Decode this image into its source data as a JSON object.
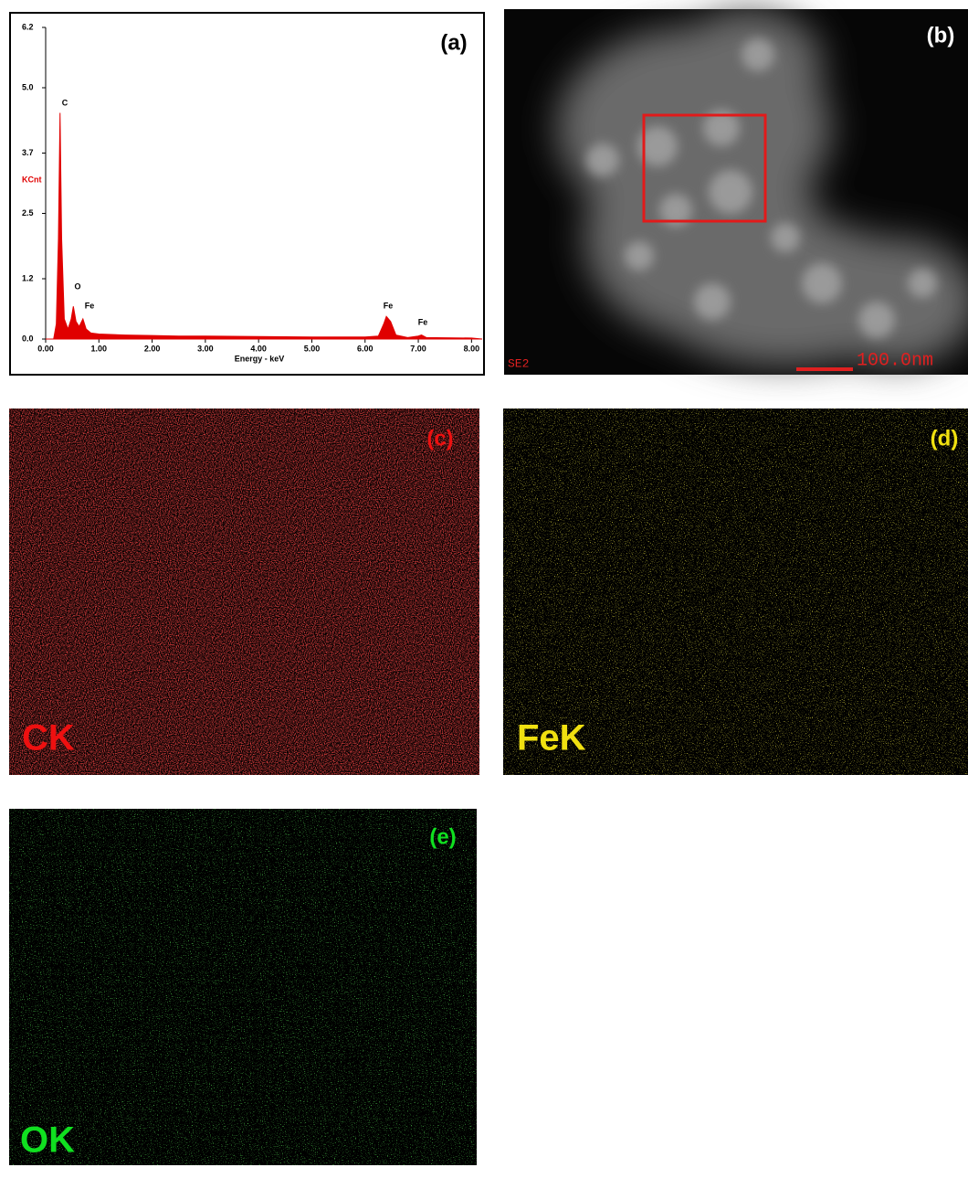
{
  "chart_data": {
    "type": "area",
    "label": "(a)",
    "x_label": "Energy - keV",
    "y_label": "KCnt",
    "x": [
      0.0,
      0.15,
      0.2,
      0.24,
      0.27,
      0.3,
      0.35,
      0.42,
      0.48,
      0.52,
      0.57,
      0.63,
      0.7,
      0.76,
      0.85,
      1.0,
      1.5,
      2.0,
      2.5,
      3.0,
      4.0,
      5.0,
      6.0,
      6.25,
      6.35,
      6.4,
      6.48,
      6.58,
      6.8,
      7.0,
      7.06,
      7.15,
      8.0,
      8.2
    ],
    "series": [
      {
        "color": "#e00000",
        "values": [
          0,
          0,
          0.3,
          2.0,
          4.5,
          2.0,
          0.4,
          0.2,
          0.4,
          0.65,
          0.35,
          0.25,
          0.4,
          0.2,
          0.12,
          0.1,
          0.08,
          0.07,
          0.06,
          0.06,
          0.05,
          0.04,
          0.04,
          0.06,
          0.3,
          0.45,
          0.35,
          0.08,
          0.03,
          0.06,
          0.08,
          0.03,
          0.02,
          0
        ]
      }
    ],
    "annotations": [
      "C",
      "O",
      "Fe",
      "Fe",
      "Fe"
    ],
    "xlim": [
      0,
      8.2
    ],
    "xticks": [
      {
        "value": 0,
        "label": "0.00"
      },
      {
        "value": 1,
        "label": "1.00"
      },
      {
        "value": 2,
        "label": "2.00"
      },
      {
        "value": 3,
        "label": "3.00"
      },
      {
        "value": 4,
        "label": "4.00"
      },
      {
        "value": 5,
        "label": "5.00"
      },
      {
        "value": 6,
        "label": "6.00"
      },
      {
        "value": 7,
        "label": "7.00"
      },
      {
        "value": 8,
        "label": "8.00"
      }
    ],
    "ylim": [
      0,
      6.2
    ],
    "yticks": [
      {
        "value": 0,
        "label": "0.0"
      },
      1.2,
      2.5,
      3.7,
      {
        "value": 5,
        "label": "5.0"
      },
      6.2
    ]
  },
  "panels": [
    {
      "label": "(b)",
      "detector": "SE2",
      "scale": "100.0nm"
    },
    {
      "label": "(c)",
      "element": "CK"
    },
    {
      "label": "(d)",
      "element": "FeK"
    },
    {
      "label": "(e)",
      "element": "OK"
    }
  ]
}
